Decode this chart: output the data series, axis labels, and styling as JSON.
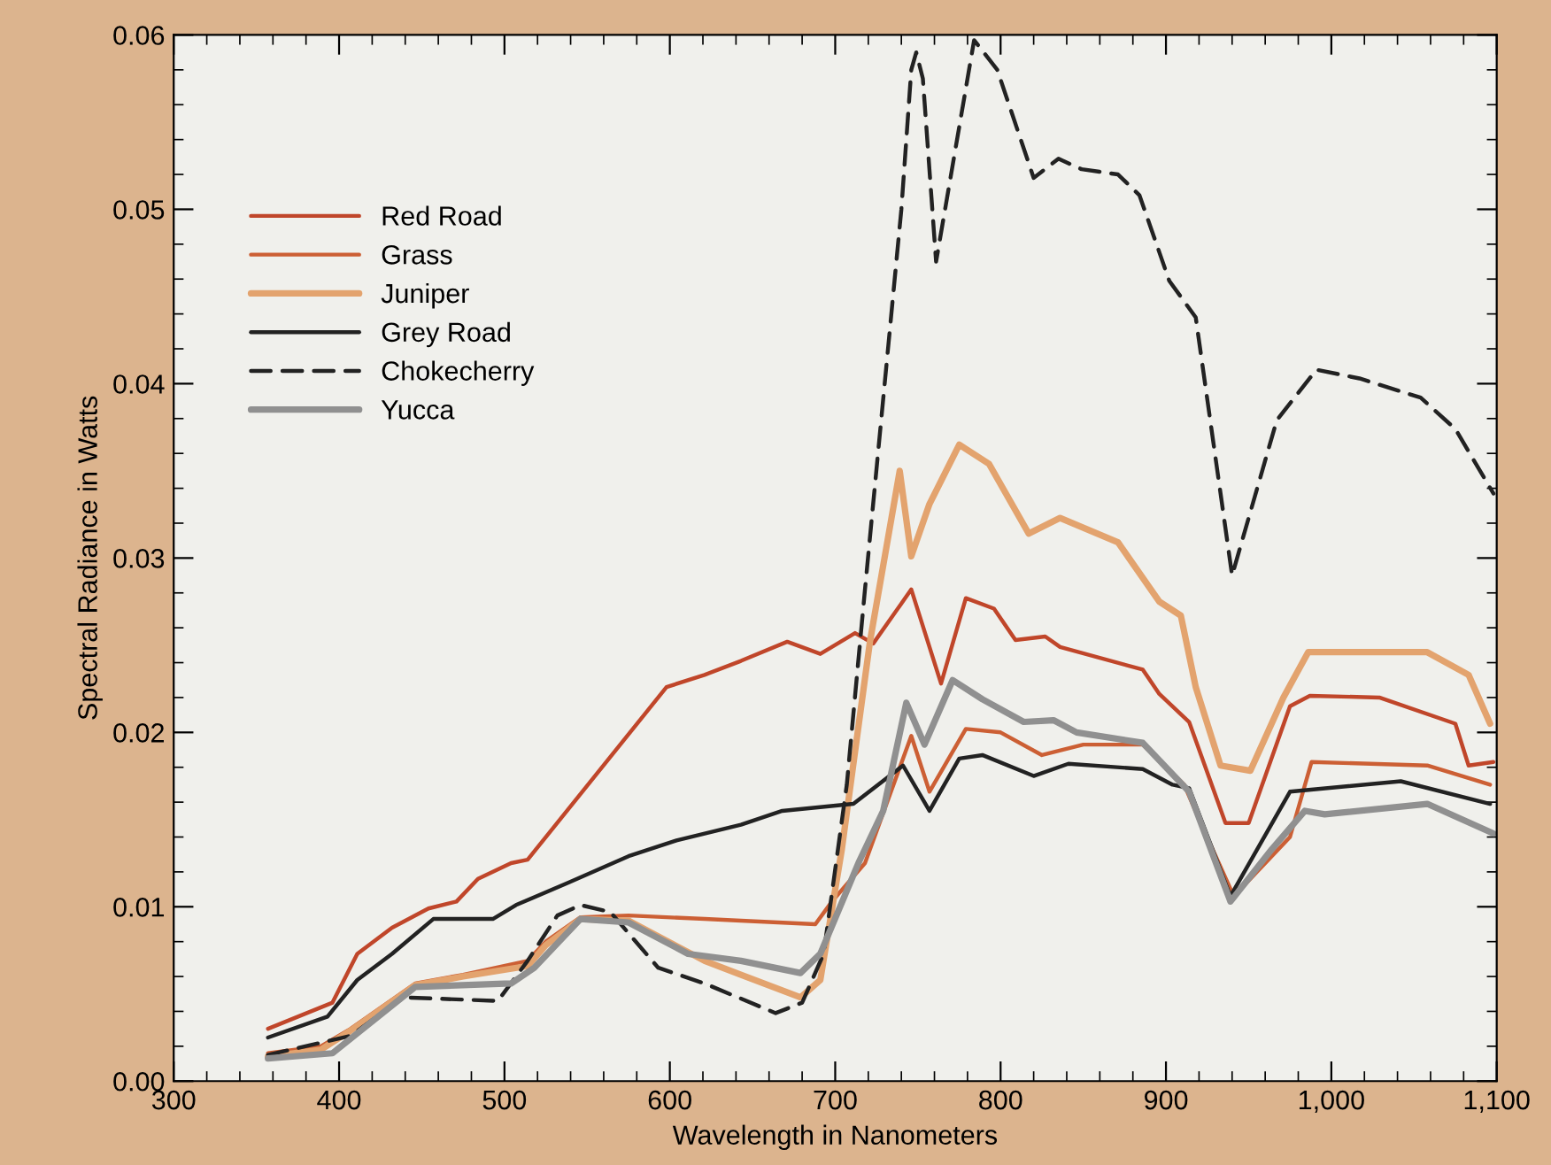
{
  "chart_data": {
    "type": "line",
    "xlabel": "Wavelength in Nanometers",
    "ylabel": "Spectral Radiance in Watts",
    "xlim": [
      300,
      1100
    ],
    "ylim": [
      0,
      0.06
    ],
    "xticks": [
      300,
      400,
      500,
      600,
      700,
      800,
      900,
      {
        "value": 1000,
        "label": "1,000"
      },
      {
        "value": 1100,
        "label": "1,100"
      }
    ],
    "yticks": [
      {
        "value": 0,
        "label": "0.00"
      },
      {
        "value": 0.01,
        "label": "0.01"
      },
      {
        "value": 0.02,
        "label": "0.02"
      },
      {
        "value": 0.03,
        "label": "0.03"
      },
      {
        "value": 0.04,
        "label": "0.04"
      },
      {
        "value": 0.05,
        "label": "0.05"
      },
      {
        "value": 0.06,
        "label": "0.06"
      }
    ],
    "grid": false,
    "legend": "top left",
    "marker": "none",
    "series": [
      {
        "name": "Red Road",
        "color": "#c0462a",
        "line_style": "solid",
        "x": [
          357,
          396,
          411,
          432,
          454,
          471,
          484,
          504,
          514,
          598,
          621,
          643,
          671,
          691,
          712,
          723,
          746,
          764,
          779,
          796,
          809,
          827,
          836,
          886,
          896,
          914,
          936,
          950,
          975,
          987,
          1029,
          1075,
          1083,
          1098
        ],
        "values": [
          0.003,
          0.0045,
          0.0073,
          0.0088,
          0.0099,
          0.0103,
          0.0116,
          0.0125,
          0.0127,
          0.0226,
          0.0233,
          0.0241,
          0.0252,
          0.0245,
          0.0257,
          0.0251,
          0.0282,
          0.0228,
          0.0277,
          0.0271,
          0.0253,
          0.0255,
          0.0249,
          0.0236,
          0.0222,
          0.0206,
          0.0148,
          0.0148,
          0.0215,
          0.0221,
          0.022,
          0.0205,
          0.0181,
          0.0183
        ]
      },
      {
        "name": "Grass",
        "color": "#cc5f34",
        "line_style": "solid",
        "x": [
          357,
          389,
          407,
          446,
          475,
          514,
          525,
          546,
          575,
          621,
          643,
          688,
          698,
          718,
          746,
          757,
          779,
          800,
          825,
          850,
          886,
          911,
          921,
          941,
          975,
          988,
          1058,
          1096
        ],
        "values": [
          0.0016,
          0.002,
          0.003,
          0.0056,
          0.0061,
          0.0069,
          0.008,
          0.0094,
          0.0095,
          0.0093,
          0.0092,
          0.009,
          0.0103,
          0.0125,
          0.0198,
          0.0166,
          0.0202,
          0.02,
          0.0187,
          0.0193,
          0.0193,
          0.017,
          0.0148,
          0.0106,
          0.014,
          0.0183,
          0.0181,
          0.017
        ]
      },
      {
        "name": "Juniper",
        "color": "#e3a36e",
        "line_style": "solid",
        "x": [
          357,
          389,
          407,
          446,
          475,
          514,
          525,
          546,
          575,
          621,
          643,
          679,
          691,
          704,
          721,
          739,
          746,
          757,
          775,
          793,
          817,
          836,
          871,
          896,
          909,
          918,
          933,
          951,
          971,
          986,
          1058,
          1083,
          1096
        ],
        "values": [
          0.0014,
          0.0018,
          0.0029,
          0.0055,
          0.006,
          0.0066,
          0.0078,
          0.0093,
          0.0092,
          0.0069,
          0.0061,
          0.0048,
          0.0058,
          0.0133,
          0.0252,
          0.035,
          0.0301,
          0.0331,
          0.0365,
          0.0354,
          0.0314,
          0.0323,
          0.0309,
          0.0275,
          0.0267,
          0.0226,
          0.0181,
          0.0178,
          0.022,
          0.0246,
          0.0246,
          0.0233,
          0.0205
        ]
      },
      {
        "name": "Grey Road",
        "color": "#222222",
        "line_style": "solid",
        "x": [
          357,
          393,
          411,
          432,
          457,
          493,
          507,
          539,
          575,
          604,
          643,
          668,
          711,
          741,
          757,
          775,
          789,
          820,
          841,
          886,
          904,
          914,
          939,
          975,
          1042,
          1096
        ],
        "values": [
          0.0025,
          0.0037,
          0.0058,
          0.0073,
          0.0093,
          0.0093,
          0.0101,
          0.0114,
          0.0129,
          0.0138,
          0.0147,
          0.0155,
          0.0159,
          0.0181,
          0.0155,
          0.0185,
          0.0187,
          0.0175,
          0.0182,
          0.0179,
          0.017,
          0.0168,
          0.0106,
          0.0166,
          0.0172,
          0.0159
        ]
      },
      {
        "name": "Chokecherry",
        "color": "#222222",
        "line_style": "dashed",
        "x": [
          357,
          407,
          439,
          496,
          514,
          532,
          546,
          564,
          593,
          621,
          664,
          680,
          693,
          707,
          718,
          740,
          746,
          749,
          753,
          761,
          784,
          798,
          820,
          835,
          849,
          871,
          884,
          902,
          918,
          940,
          967,
          991,
          1017,
          1054,
          1075,
          1098
        ],
        "values": [
          0.0015,
          0.0026,
          0.0048,
          0.0046,
          0.0069,
          0.0095,
          0.0101,
          0.0097,
          0.0065,
          0.0056,
          0.0039,
          0.0045,
          0.0073,
          0.017,
          0.0282,
          0.05,
          0.058,
          0.059,
          0.0575,
          0.047,
          0.0597,
          0.058,
          0.0518,
          0.0529,
          0.0523,
          0.052,
          0.0508,
          0.0459,
          0.0438,
          0.029,
          0.0379,
          0.0408,
          0.0403,
          0.0392,
          0.0374,
          0.0337
        ]
      },
      {
        "name": "Yucca",
        "color": "#909090",
        "line_style": "solid",
        "x": [
          357,
          396,
          446,
          504,
          518,
          546,
          575,
          611,
          643,
          679,
          691,
          714,
          729,
          743,
          754,
          771,
          789,
          814,
          832,
          846,
          886,
          914,
          939,
          964,
          984,
          996,
          1058,
          1098
        ],
        "values": [
          0.0013,
          0.0016,
          0.0054,
          0.0056,
          0.0065,
          0.0093,
          0.0091,
          0.0073,
          0.0069,
          0.0062,
          0.0073,
          0.0125,
          0.0155,
          0.0217,
          0.0193,
          0.023,
          0.0219,
          0.0206,
          0.0207,
          0.02,
          0.0194,
          0.0166,
          0.0103,
          0.0133,
          0.0155,
          0.0153,
          0.0159,
          0.0142
        ]
      }
    ]
  }
}
